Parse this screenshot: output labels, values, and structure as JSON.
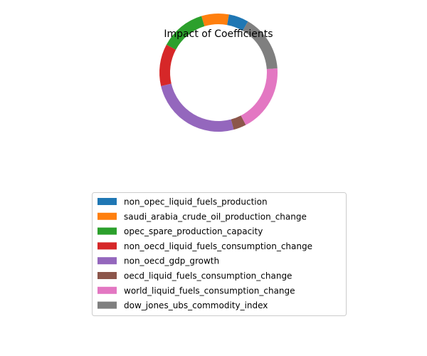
{
  "chart_data": {
    "type": "pie",
    "title": "Impact of Coefficients",
    "style": "donut",
    "start_angle_deg": 60,
    "direction": "counterclockwise",
    "legend_placement": "bottom-center",
    "slices": [
      {
        "label": "non_opec_liquid_fuels_production",
        "value": 5.5,
        "color": "#1f77b4"
      },
      {
        "label": "saudi_arabia_crude_oil_production_change",
        "value": 7.5,
        "color": "#ff7f0e"
      },
      {
        "label": "opec_spare_production_capacity",
        "value": 12.5,
        "color": "#2ca02c"
      },
      {
        "label": "non_oecd_liquid_fuels_consumption_change",
        "value": 11.5,
        "color": "#d62728"
      },
      {
        "label": "non_oecd_gdp_growth",
        "value": 25.5,
        "color": "#9467bd"
      },
      {
        "label": "oecd_liquid_fuels_consumption_change",
        "value": 3.5,
        "color": "#8c564b"
      },
      {
        "label": "world_liquid_fuels_consumption_change",
        "value": 18.5,
        "color": "#e377c2"
      },
      {
        "label": "dow_jones_ubs_commodity_index",
        "value": 15.5,
        "color": "#7f7f7f"
      }
    ]
  }
}
